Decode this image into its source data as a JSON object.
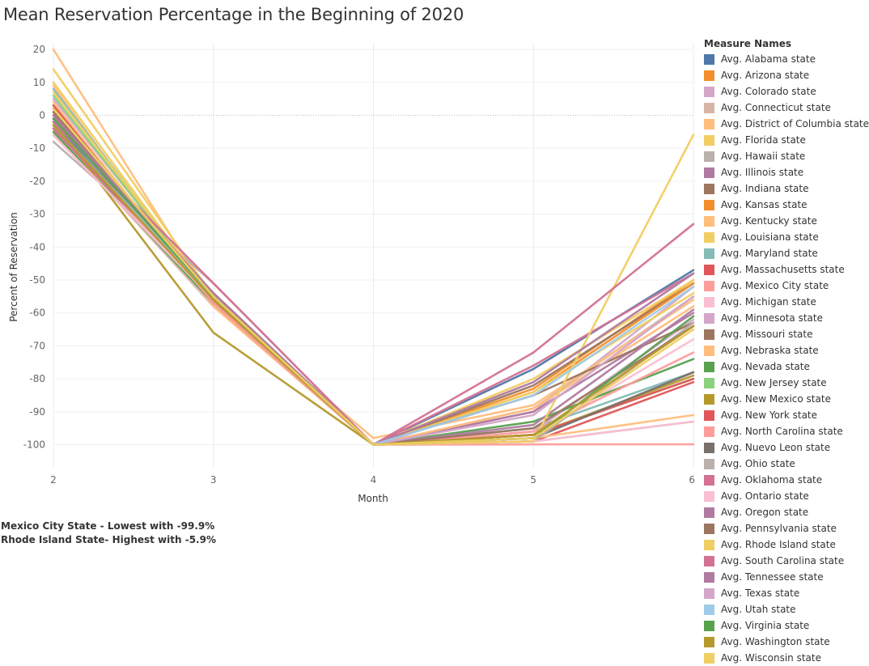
{
  "chart_data": {
    "type": "line",
    "title": "Mean Reservation Percentage in the Beginning of 2020",
    "xlabel": "Month",
    "ylabel": "Percent of Reservation",
    "x": [
      2,
      3,
      4,
      5,
      6
    ],
    "x_ticks": [
      "2",
      "3",
      "4",
      "5",
      "6"
    ],
    "y_ticks": [
      "20",
      "10",
      "0",
      "-10",
      "-20",
      "-30",
      "-40",
      "-50",
      "-60",
      "-70",
      "-80",
      "-90",
      "-100"
    ],
    "xlim": [
      2,
      6
    ],
    "ylim": [
      -107,
      22
    ],
    "grid": true,
    "zero_line": "dotted",
    "legend_title": "Measure Names",
    "legend_position": "right",
    "series": [
      {
        "name": "Avg. Alabama state",
        "color": "#4e79a7",
        "values": [
          -2,
          -55,
          -100,
          -77,
          -47
        ]
      },
      {
        "name": "Avg. Arizona state",
        "color": "#f28e2b",
        "values": [
          1,
          -56,
          -100,
          -83,
          -50
        ]
      },
      {
        "name": "Avg. Colorado state",
        "color": "#d4a6c8",
        "values": [
          5,
          -55,
          -100,
          -90,
          -52
        ]
      },
      {
        "name": "Avg. Connecticut state",
        "color": "#d7b5a6",
        "values": [
          -5,
          -58,
          -100,
          -89,
          -55
        ]
      },
      {
        "name": "Avg. District of Columbia state",
        "color": "#ffbe7d",
        "values": [
          20,
          -57,
          -98,
          -88,
          -56
        ]
      },
      {
        "name": "Avg. Florida state",
        "color": "#f1ce63",
        "values": [
          14,
          -55,
          -100,
          -80,
          -50
        ]
      },
      {
        "name": "Avg. Hawaii state",
        "color": "#bab0ac",
        "values": [
          -8,
          -51,
          -100,
          -99,
          -93
        ]
      },
      {
        "name": "Avg. Illinois state",
        "color": "#b07aa1",
        "values": [
          -3,
          -55,
          -100,
          -90,
          -60
        ]
      },
      {
        "name": "Avg. Indiana state",
        "color": "#9d7660",
        "values": [
          0,
          -56,
          -100,
          -82,
          -51
        ]
      },
      {
        "name": "Avg. Kansas state",
        "color": "#f28e2b",
        "values": [
          3,
          -57,
          -100,
          -84,
          -51
        ]
      },
      {
        "name": "Avg. Kentucky state",
        "color": "#ffbe7d",
        "values": [
          9,
          -58,
          -100,
          -89,
          -58
        ]
      },
      {
        "name": "Avg. Louisiana state",
        "color": "#f1ce63",
        "values": [
          10,
          -56,
          -100,
          -84,
          -54
        ]
      },
      {
        "name": "Avg. Maryland state",
        "color": "#86bcb6",
        "values": [
          8,
          -56,
          -100,
          -95,
          -78
        ]
      },
      {
        "name": "Avg. Massachusetts state",
        "color": "#e15759",
        "values": [
          -4,
          -56,
          -100,
          -99,
          -81
        ]
      },
      {
        "name": "Avg. Mexico City state",
        "color": "#ff9d9a",
        "values": [
          -6,
          -55,
          -100,
          -99.9,
          -99.9
        ]
      },
      {
        "name": "Avg. Michigan state",
        "color": "#fabfd2",
        "values": [
          1,
          -56,
          -100,
          -97,
          -68
        ]
      },
      {
        "name": "Avg. Minnesota state",
        "color": "#d4a6c8",
        "values": [
          -1,
          -56,
          -100,
          -96,
          -62
        ]
      },
      {
        "name": "Avg. Missouri state",
        "color": "#9d7660",
        "values": [
          2,
          -55,
          -100,
          -85,
          -63
        ]
      },
      {
        "name": "Avg. Nebraska state",
        "color": "#ffbe7d",
        "values": [
          4,
          -57,
          -100,
          -98,
          -91
        ]
      },
      {
        "name": "Avg. Nevada state",
        "color": "#59a14f",
        "values": [
          -5,
          -57,
          -100,
          -93,
          -74
        ]
      },
      {
        "name": "Avg. New Jersey state",
        "color": "#8cd17d",
        "values": [
          6,
          -56,
          -100,
          -97,
          -80
        ]
      },
      {
        "name": "Avg. New Mexico state",
        "color": "#b6992d",
        "values": [
          -2,
          -66,
          -100,
          -97,
          -79
        ]
      },
      {
        "name": "Avg. New York state",
        "color": "#e15759",
        "values": [
          3,
          -57,
          -100,
          -97,
          -80
        ]
      },
      {
        "name": "Avg. North Carolina state",
        "color": "#ff9d9a",
        "values": [
          1,
          -57,
          -100,
          -96,
          -72
        ]
      },
      {
        "name": "Avg. Nuevo Leon state",
        "color": "#79706e",
        "values": [
          -3,
          -54,
          -100,
          -98,
          -78
        ]
      },
      {
        "name": "Avg. Ohio state",
        "color": "#bab0ac",
        "values": [
          -1,
          -55,
          -100,
          -99,
          -63
        ]
      },
      {
        "name": "Avg. Oklahoma state",
        "color": "#d37295",
        "values": [
          -4,
          -55,
          -100,
          -76,
          -48
        ]
      },
      {
        "name": "Avg. Ontario state",
        "color": "#fabfd2",
        "values": [
          -6,
          -56,
          -100,
          -99,
          -93
        ]
      },
      {
        "name": "Avg. Oregon state",
        "color": "#b07aa1",
        "values": [
          2,
          -55,
          -100,
          -94,
          -59
        ]
      },
      {
        "name": "Avg. Pennsylvania state",
        "color": "#9d7660",
        "values": [
          1,
          -56,
          -100,
          -95,
          -64
        ]
      },
      {
        "name": "Avg. Rhode Island state",
        "color": "#f1ce63",
        "values": [
          7,
          -55,
          -100,
          -99,
          -5.9
        ]
      },
      {
        "name": "Avg. South Carolina state",
        "color": "#d37295",
        "values": [
          -2,
          -51,
          -100,
          -72,
          -33
        ]
      },
      {
        "name": "Avg. Tennessee state",
        "color": "#b07aa1",
        "values": [
          0,
          -54,
          -100,
          -81,
          -48
        ]
      },
      {
        "name": "Avg. Texas state",
        "color": "#d4a6c8",
        "values": [
          -1,
          -55,
          -100,
          -91,
          -55
        ]
      },
      {
        "name": "Avg. Utah state",
        "color": "#a0cbe8",
        "values": [
          -3,
          -55,
          -100,
          -85,
          -52
        ]
      },
      {
        "name": "Avg. Virginia state",
        "color": "#59a14f",
        "values": [
          -1,
          -55,
          -100,
          -98,
          -61
        ]
      },
      {
        "name": "Avg. Washington state",
        "color": "#b6992d",
        "values": [
          -3,
          -56,
          -100,
          -97,
          -64
        ]
      },
      {
        "name": "Avg. Wisconsin state",
        "color": "#f1ce63",
        "values": [
          2,
          -55,
          -100,
          -98,
          -65
        ]
      }
    ],
    "annotations": [
      "Mexico City State - Lowest with -99.9%",
      "Rhode Island State- Highest with -5.9%"
    ]
  }
}
